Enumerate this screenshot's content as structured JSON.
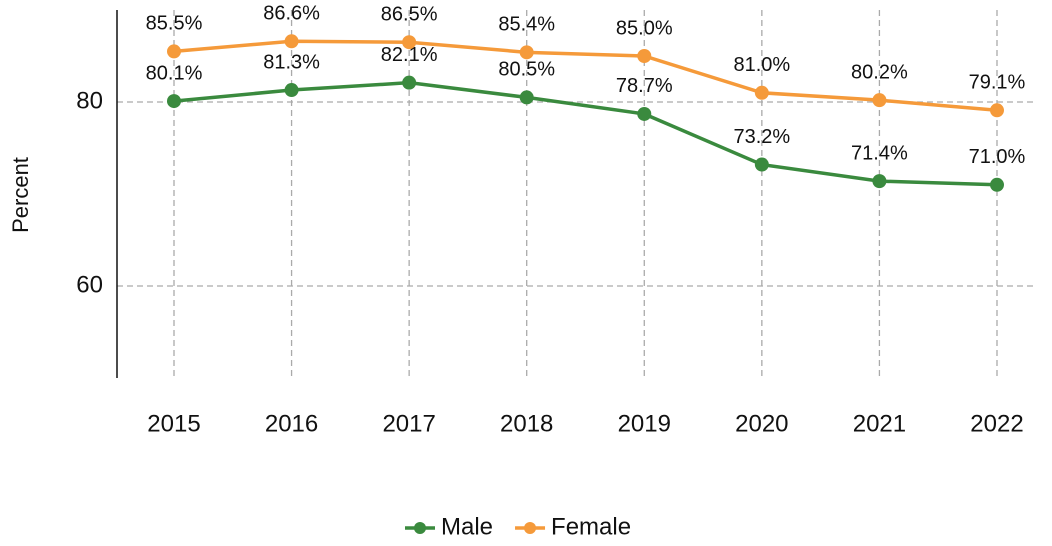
{
  "chart_data": {
    "type": "line",
    "y_label": "Percent",
    "categories": [
      "2015",
      "2016",
      "2017",
      "2018",
      "2019",
      "2020",
      "2021",
      "2022"
    ],
    "series": [
      {
        "name": "Male",
        "color": "#3a8a3e",
        "values": [
          80.1,
          81.3,
          82.1,
          80.5,
          78.7,
          73.2,
          71.4,
          71.0
        ],
        "value_labels": [
          "80.1%",
          "81.3%",
          "82.1%",
          "80.5%",
          "78.7%",
          "73.2%",
          "71.4%",
          "71.0%"
        ]
      },
      {
        "name": "Female",
        "color": "#f59a3a",
        "values": [
          85.5,
          86.6,
          86.5,
          85.4,
          85.0,
          81.0,
          80.2,
          79.1
        ],
        "value_labels": [
          "85.5%",
          "86.6%",
          "86.5%",
          "85.4%",
          "85.0%",
          "81.0%",
          "80.2%",
          "79.1%"
        ]
      }
    ],
    "ylim": [
      50,
      90
    ],
    "yticks": [
      60,
      80
    ],
    "grid": true,
    "legend": "bottom"
  }
}
